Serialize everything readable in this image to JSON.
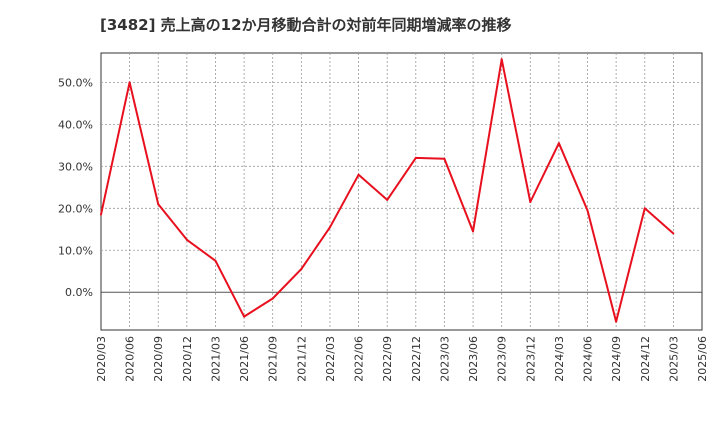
{
  "title": "[3482]  売上高の12か月移動合計の対前年同期増減率の推移",
  "colors": {
    "line": "#e8101e",
    "grid": "#999999",
    "axis": "#333333",
    "zero": "#555555"
  },
  "chart_data": {
    "type": "line",
    "title": "[3482]  売上高の12か月移動合計の対前年同期増減率の推移",
    "xlabel": "",
    "ylabel": "",
    "ylim": [
      -9,
      57
    ],
    "yticks": [
      0,
      10,
      20,
      30,
      40,
      50
    ],
    "ytick_labels": [
      "0.0%",
      "10.0%",
      "20.0%",
      "30.0%",
      "40.0%",
      "50.0%"
    ],
    "grid": true,
    "categories": [
      "2020/03",
      "2020/06",
      "2020/09",
      "2020/12",
      "2021/03",
      "2021/06",
      "2021/09",
      "2021/12",
      "2022/03",
      "2022/06",
      "2022/09",
      "2022/12",
      "2023/03",
      "2023/06",
      "2023/09",
      "2023/12",
      "2024/03",
      "2024/06",
      "2024/09",
      "2024/12",
      "2025/03",
      "2025/06"
    ],
    "series": [
      {
        "name": "増減率",
        "values": [
          18.5,
          50.0,
          21.0,
          12.5,
          7.5,
          -5.8,
          -1.5,
          5.5,
          15.5,
          28.0,
          22.0,
          32.0,
          31.8,
          14.5,
          55.5,
          21.5,
          35.5,
          19.5,
          -7.0,
          20.0,
          14.0,
          null
        ]
      }
    ]
  }
}
